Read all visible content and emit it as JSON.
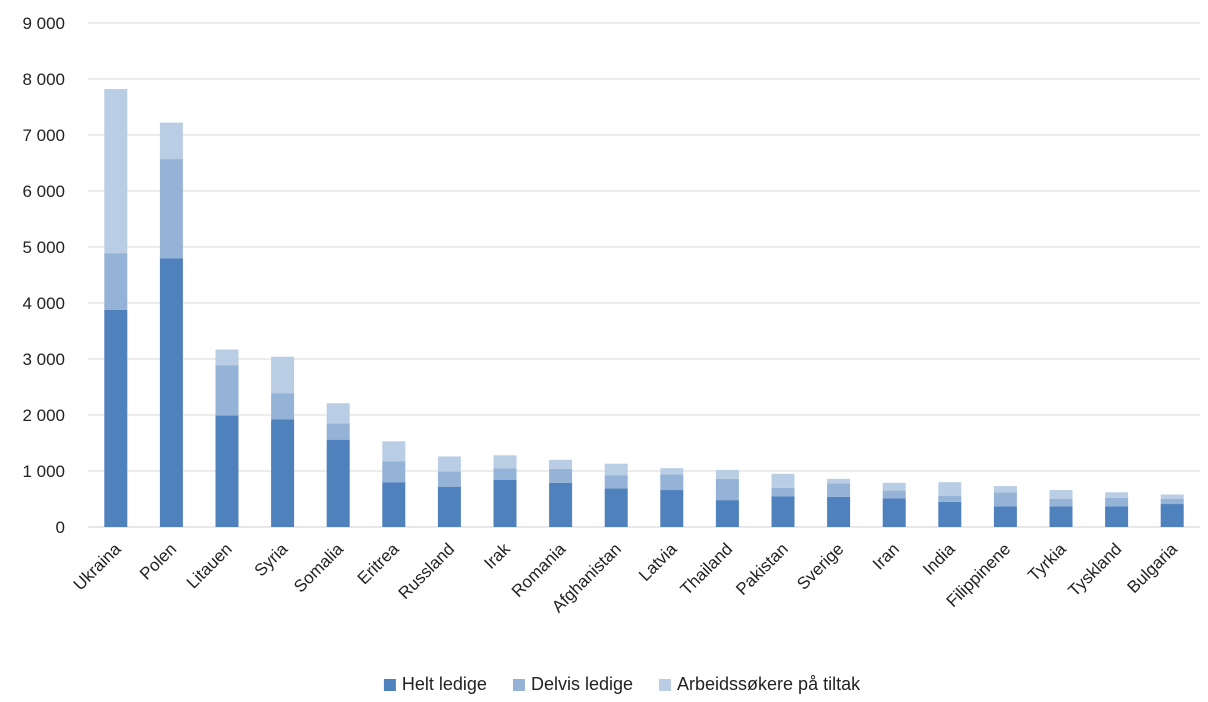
{
  "chart_data": {
    "type": "bar",
    "stacked": true,
    "title": "",
    "xlabel": "",
    "ylabel": "",
    "ylim": [
      0,
      9000
    ],
    "yticks": [
      0,
      1000,
      2000,
      3000,
      4000,
      5000,
      6000,
      7000,
      8000,
      9000
    ],
    "ytick_labels": [
      "0",
      "1 000",
      "2 000",
      "3 000",
      "4 000",
      "5 000",
      "6 000",
      "7 000",
      "8 000",
      "9 000"
    ],
    "grid": true,
    "legend_position": "bottom",
    "categories": [
      "Ukraina",
      "Polen",
      "Litauen",
      "Syria",
      "Somalia",
      "Eritrea",
      "Russland",
      "Irak",
      "Romania",
      "Afghanistan",
      "Latvia",
      "Thailand",
      "Pakistan",
      "Sverige",
      "Iran",
      "India",
      "Filippinene",
      "Tyrkia",
      "Tyskland",
      "Bulgaria"
    ],
    "series": [
      {
        "name": "Helt ledige",
        "color": "#4f81bd",
        "values": [
          3880,
          4800,
          1990,
          1920,
          1560,
          800,
          720,
          840,
          790,
          690,
          660,
          480,
          550,
          540,
          510,
          450,
          370,
          370,
          370,
          410
        ]
      },
      {
        "name": "Delvis ledige",
        "color": "#95b3d7",
        "values": [
          1010,
          1770,
          900,
          470,
          290,
          370,
          270,
          210,
          250,
          230,
          280,
          380,
          150,
          240,
          140,
          110,
          250,
          130,
          150,
          90
        ]
      },
      {
        "name": "Arbeidssøkere på tiltak",
        "color": "#b9cde5",
        "values": [
          2930,
          650,
          280,
          650,
          360,
          360,
          270,
          230,
          160,
          210,
          110,
          160,
          250,
          80,
          140,
          240,
          110,
          160,
          100,
          80
        ]
      }
    ]
  }
}
